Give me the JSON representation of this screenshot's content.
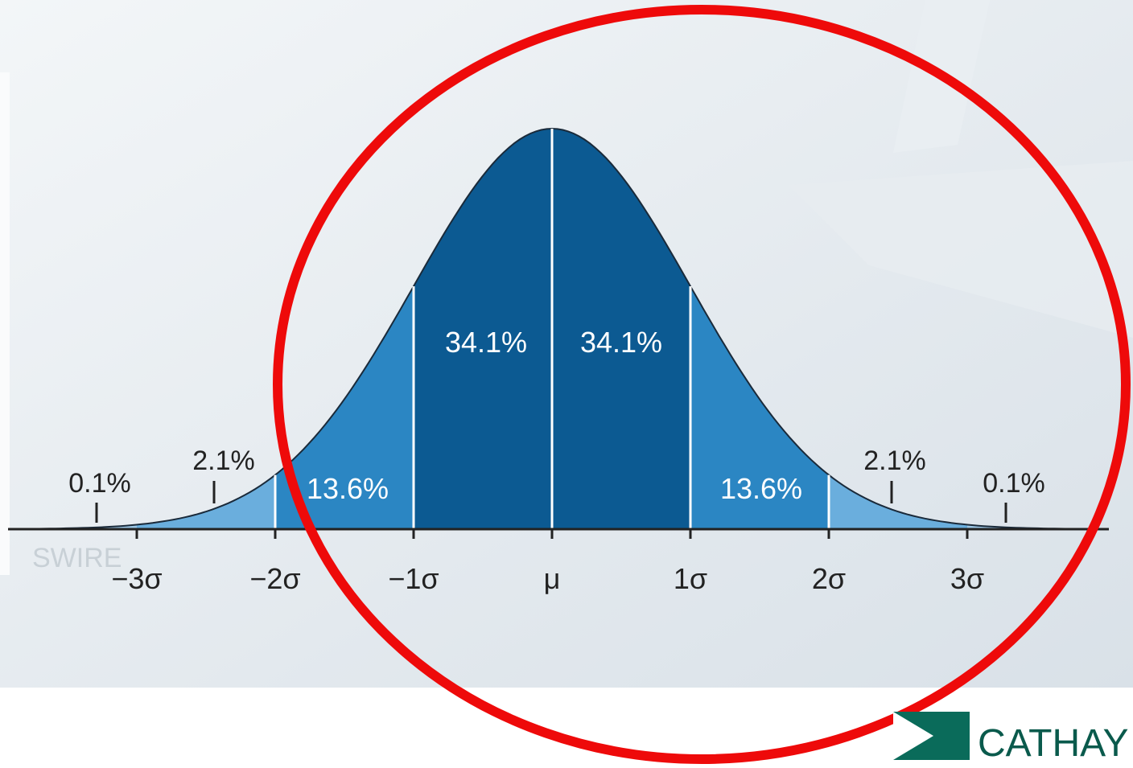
{
  "diagram": {
    "percent_labels": [
      "0.1%",
      "2.1%",
      "13.6%",
      "34.1%",
      "34.1%",
      "13.6%",
      "2.1%",
      "0.1%"
    ],
    "axis_labels": [
      "−3σ",
      "−2σ",
      "−1σ",
      "μ",
      "1σ",
      "2σ",
      "3σ"
    ],
    "logos": {
      "swire": "SWIRE",
      "cathay": "CATHAY"
    }
  }
}
